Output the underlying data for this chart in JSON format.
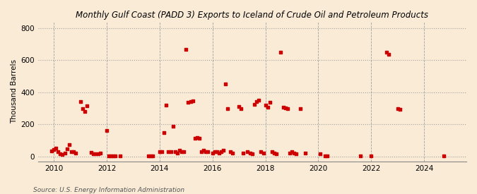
{
  "title": "Monthly Gulf Coast (PADD 3) Exports to Iceland of Crude Oil and Petroleum Products",
  "ylabel": "Thousand Barrels",
  "source": "Source: U.S. Energy Information Administration",
  "background_color": "#faebd7",
  "dot_color": "#cc0000",
  "dot_size": 6,
  "xlim": [
    2009.4,
    2025.6
  ],
  "ylim": [
    -30,
    840
  ],
  "yticks": [
    0,
    200,
    400,
    600,
    800
  ],
  "xticks": [
    2010,
    2012,
    2014,
    2016,
    2018,
    2020,
    2022,
    2024
  ],
  "data": [
    [
      2009.92,
      35
    ],
    [
      2010.0,
      42
    ],
    [
      2010.08,
      52
    ],
    [
      2010.17,
      28
    ],
    [
      2010.25,
      18
    ],
    [
      2010.33,
      12
    ],
    [
      2010.42,
      22
    ],
    [
      2010.5,
      48
    ],
    [
      2010.58,
      72
    ],
    [
      2010.67,
      32
    ],
    [
      2010.75,
      28
    ],
    [
      2010.83,
      22
    ],
    [
      2011.0,
      340
    ],
    [
      2011.08,
      300
    ],
    [
      2011.17,
      280
    ],
    [
      2011.25,
      315
    ],
    [
      2011.42,
      25
    ],
    [
      2011.5,
      18
    ],
    [
      2011.58,
      15
    ],
    [
      2011.67,
      18
    ],
    [
      2011.75,
      22
    ],
    [
      2012.0,
      162
    ],
    [
      2012.08,
      4
    ],
    [
      2012.17,
      4
    ],
    [
      2012.25,
      4
    ],
    [
      2012.33,
      4
    ],
    [
      2012.5,
      4
    ],
    [
      2013.58,
      4
    ],
    [
      2013.67,
      4
    ],
    [
      2013.75,
      4
    ],
    [
      2014.0,
      28
    ],
    [
      2014.08,
      32
    ],
    [
      2014.17,
      148
    ],
    [
      2014.25,
      318
    ],
    [
      2014.33,
      32
    ],
    [
      2014.42,
      28
    ],
    [
      2014.5,
      188
    ],
    [
      2014.58,
      28
    ],
    [
      2014.67,
      22
    ],
    [
      2014.75,
      38
    ],
    [
      2014.83,
      32
    ],
    [
      2014.92,
      28
    ],
    [
      2015.0,
      668
    ],
    [
      2015.08,
      338
    ],
    [
      2015.17,
      342
    ],
    [
      2015.25,
      348
    ],
    [
      2015.33,
      112
    ],
    [
      2015.42,
      118
    ],
    [
      2015.5,
      112
    ],
    [
      2015.58,
      28
    ],
    [
      2015.67,
      38
    ],
    [
      2015.75,
      32
    ],
    [
      2015.83,
      28
    ],
    [
      2016.0,
      22
    ],
    [
      2016.08,
      32
    ],
    [
      2016.17,
      28
    ],
    [
      2016.25,
      22
    ],
    [
      2016.33,
      28
    ],
    [
      2016.42,
      38
    ],
    [
      2016.5,
      452
    ],
    [
      2016.58,
      298
    ],
    [
      2016.67,
      28
    ],
    [
      2016.75,
      22
    ],
    [
      2017.0,
      312
    ],
    [
      2017.08,
      298
    ],
    [
      2017.17,
      22
    ],
    [
      2017.33,
      28
    ],
    [
      2017.42,
      22
    ],
    [
      2017.5,
      18
    ],
    [
      2017.58,
      322
    ],
    [
      2017.67,
      342
    ],
    [
      2017.75,
      352
    ],
    [
      2017.83,
      28
    ],
    [
      2017.92,
      22
    ],
    [
      2018.0,
      318
    ],
    [
      2018.08,
      308
    ],
    [
      2018.17,
      338
    ],
    [
      2018.25,
      28
    ],
    [
      2018.33,
      22
    ],
    [
      2018.42,
      18
    ],
    [
      2018.58,
      648
    ],
    [
      2018.67,
      308
    ],
    [
      2018.75,
      302
    ],
    [
      2018.83,
      298
    ],
    [
      2018.92,
      22
    ],
    [
      2019.0,
      28
    ],
    [
      2019.08,
      22
    ],
    [
      2019.17,
      18
    ],
    [
      2019.33,
      298
    ],
    [
      2019.5,
      22
    ],
    [
      2020.08,
      18
    ],
    [
      2020.25,
      4
    ],
    [
      2020.33,
      4
    ],
    [
      2021.58,
      4
    ],
    [
      2022.0,
      4
    ],
    [
      2022.58,
      648
    ],
    [
      2022.67,
      638
    ],
    [
      2023.0,
      298
    ],
    [
      2023.08,
      292
    ],
    [
      2024.75,
      4
    ]
  ]
}
